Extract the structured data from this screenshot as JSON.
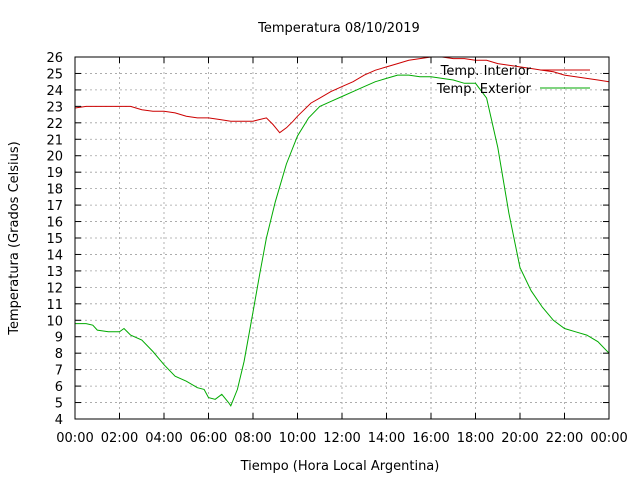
{
  "chart_data": {
    "type": "line",
    "title": "Temperatura 08/10/2019",
    "xlabel": "Tiempo (Hora Local Argentina)",
    "ylabel": "Temperatura (Grados Celsius)",
    "xlim": [
      0,
      24
    ],
    "ylim": [
      4,
      26
    ],
    "x_ticks": [
      {
        "value": 0,
        "label": "00:00"
      },
      {
        "value": 2,
        "label": "02:00"
      },
      {
        "value": 4,
        "label": "04:00"
      },
      {
        "value": 6,
        "label": "06:00"
      },
      {
        "value": 8,
        "label": "08:00"
      },
      {
        "value": 10,
        "label": "10:00"
      },
      {
        "value": 12,
        "label": "12:00"
      },
      {
        "value": 14,
        "label": "14:00"
      },
      {
        "value": 16,
        "label": "16:00"
      },
      {
        "value": 18,
        "label": "18:00"
      },
      {
        "value": 20,
        "label": "20:00"
      },
      {
        "value": 22,
        "label": "22:00"
      },
      {
        "value": 24,
        "label": "00:00"
      }
    ],
    "y_ticks": [
      4,
      5,
      6,
      7,
      8,
      9,
      10,
      11,
      12,
      13,
      14,
      15,
      16,
      17,
      18,
      19,
      20,
      21,
      22,
      23,
      24,
      25,
      26
    ],
    "grid": true,
    "legend_position": "top-right",
    "series": [
      {
        "name": "Temp. Interior",
        "color": "#cc0000",
        "x": [
          0,
          0.5,
          1,
          1.5,
          2,
          2.5,
          3,
          3.5,
          4,
          4.5,
          5,
          5.5,
          6,
          6.5,
          7,
          7.5,
          8,
          8.3,
          8.6,
          8.9,
          9.2,
          9.5,
          9.8,
          10,
          10.3,
          10.6,
          11,
          11.5,
          12,
          12.5,
          13,
          13.5,
          14,
          14.5,
          15,
          15.5,
          16,
          16.5,
          17,
          17.5,
          18,
          18.5,
          19,
          19.5,
          20,
          20.5,
          21,
          21.5,
          22,
          22.5,
          23,
          23.5,
          24
        ],
        "values": [
          22.9,
          23.0,
          23.0,
          23.0,
          23.0,
          23.0,
          22.8,
          22.7,
          22.7,
          22.6,
          22.4,
          22.3,
          22.3,
          22.2,
          22.1,
          22.1,
          22.1,
          22.2,
          22.3,
          21.9,
          21.4,
          21.7,
          22.1,
          22.4,
          22.8,
          23.2,
          23.5,
          23.9,
          24.2,
          24.5,
          24.9,
          25.2,
          25.4,
          25.6,
          25.8,
          25.9,
          26.0,
          26.0,
          25.9,
          25.9,
          25.8,
          25.8,
          25.6,
          25.5,
          25.4,
          25.3,
          25.2,
          25.1,
          24.9,
          24.8,
          24.7,
          24.6,
          24.5
        ]
      },
      {
        "name": "Temp. Exterior",
        "color": "#00aa00",
        "x": [
          0,
          0.5,
          0.8,
          1,
          1.5,
          2,
          2.2,
          2.5,
          3,
          3.5,
          4,
          4.5,
          5,
          5.5,
          5.8,
          6,
          6.3,
          6.6,
          6.9,
          7,
          7.3,
          7.6,
          8,
          8.3,
          8.6,
          9,
          9.5,
          10,
          10.5,
          11,
          11.5,
          12,
          12.5,
          13,
          13.5,
          14,
          14.5,
          15,
          15.5,
          16,
          16.5,
          17,
          17.5,
          18,
          18.5,
          19,
          19.5,
          20,
          20.5,
          21,
          21.5,
          22,
          22.5,
          23,
          23.5,
          24
        ],
        "values": [
          9.8,
          9.8,
          9.7,
          9.4,
          9.3,
          9.3,
          9.5,
          9.1,
          8.8,
          8.1,
          7.3,
          6.6,
          6.3,
          5.9,
          5.8,
          5.3,
          5.2,
          5.5,
          5.0,
          4.8,
          5.8,
          7.5,
          10.5,
          12.8,
          15.0,
          17.2,
          19.5,
          21.2,
          22.3,
          23.0,
          23.3,
          23.6,
          23.9,
          24.2,
          24.5,
          24.7,
          24.9,
          24.9,
          24.8,
          24.8,
          24.7,
          24.6,
          24.4,
          24.4,
          23.5,
          20.5,
          16.5,
          13.2,
          11.8,
          10.8,
          10.0,
          9.5,
          9.3,
          9.1,
          8.7,
          8.0
        ]
      }
    ]
  }
}
